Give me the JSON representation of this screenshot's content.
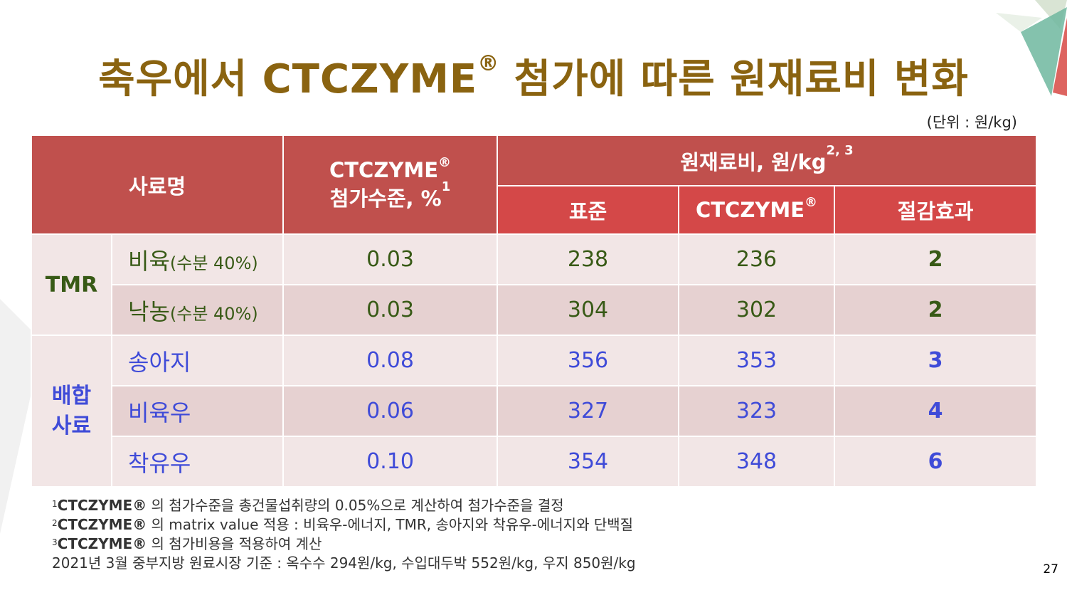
{
  "title": {
    "main": "축우에서 CTCZYME",
    "reg": "®",
    "rest": " 첨가에 따른 원재료비 변화"
  },
  "unit_note": "(단위 : 원/kg)",
  "table": {
    "headers": {
      "feed_name": "사료명",
      "ctczyme_line1": "CTCZYME",
      "ctczyme_reg": "®",
      "ctczyme_line2": "첨가수준, %",
      "ctczyme_sup": "1",
      "cost": "원재료비, 원/kg",
      "cost_sup": "2, 3",
      "standard": "표준",
      "ctczyme_col": "CTCZYME",
      "ctczyme_col_reg": "®",
      "saving": "절감효과"
    },
    "groups": {
      "tmr": "TMR",
      "mixed_line1": "배합",
      "mixed_line2": "사료"
    },
    "rows": [
      {
        "name": "비육",
        "name_note": "(수분 40%)",
        "level": "0.03",
        "standard": "238",
        "ctczyme": "236",
        "saving": "2"
      },
      {
        "name": "낙농",
        "name_note": "(수분 40%)",
        "level": "0.03",
        "standard": "304",
        "ctczyme": "302",
        "saving": "2"
      },
      {
        "name": "송아지",
        "name_note": "",
        "level": "0.08",
        "standard": "356",
        "ctczyme": "353",
        "saving": "3"
      },
      {
        "name": "비육우",
        "name_note": "",
        "level": "0.06",
        "standard": "327",
        "ctczyme": "323",
        "saving": "4"
      },
      {
        "name": "착유우",
        "name_note": "",
        "level": "0.10",
        "standard": "354",
        "ctczyme": "348",
        "saving": "6"
      }
    ]
  },
  "footnotes": [
    {
      "num": "1",
      "brand": "CTCZYME®",
      "text": " 의 첨가수준을 총건물섭취량의 0.05%으로 계산하여 첨가수준을 결정"
    },
    {
      "num": "2",
      "brand": "CTCZYME®",
      "text": " 의 matrix value 적용 : 비육우-에너지, TMR, 송아지와 착유우-에너지와 단백질"
    },
    {
      "num": "3",
      "brand": "CTCZYME®",
      "text": " 의 첨가비용을 적용하여 계산"
    },
    {
      "num": "",
      "brand": "",
      "text": "2021년 3월 중부지방 원료시장 기준 : 옥수수 294원/kg, 수입대두박 552원/kg, 우지 850원/kg"
    }
  ],
  "page_number": "27",
  "colors": {
    "title": "#8a6310",
    "header": "#c0504d",
    "subheader": "#d44848",
    "tmr_text": "#385a16",
    "mixed_text": "#3f4bd8"
  }
}
